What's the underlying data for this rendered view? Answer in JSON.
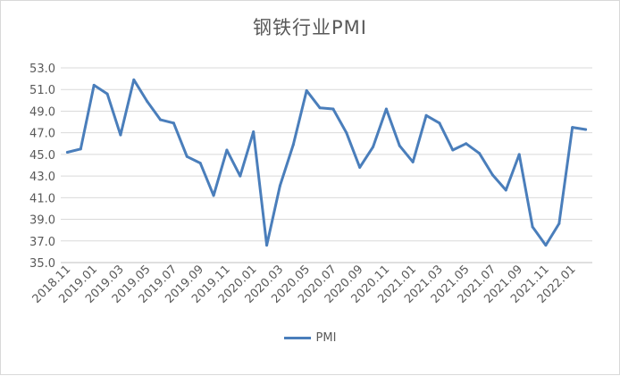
{
  "chart_data": {
    "type": "line",
    "title": "钢铁行业PMI",
    "xlabel": "",
    "ylabel": "",
    "ylim": [
      35.0,
      53.0
    ],
    "yticks": [
      "35.0",
      "37.0",
      "39.0",
      "41.0",
      "43.0",
      "45.0",
      "47.0",
      "49.0",
      "51.0",
      "53.0"
    ],
    "x": [
      "2018.11",
      "2018.12",
      "2019.01",
      "2019.02",
      "2019.03",
      "2019.04",
      "2019.05",
      "2019.06",
      "2019.07",
      "2019.08",
      "2019.09",
      "2019.10",
      "2019.11",
      "2019.12",
      "2020.01",
      "2020.02",
      "2020.03",
      "2020.04",
      "2020.05",
      "2020.06",
      "2020.07",
      "2020.08",
      "2020.09",
      "2020.10",
      "2020.11",
      "2020.12",
      "2021.01",
      "2021.02",
      "2021.03",
      "2021.04",
      "2021.05",
      "2021.06",
      "2021.07",
      "2021.08",
      "2021.09",
      "2021.10",
      "2021.11",
      "2021.12",
      "2022.01",
      "2022.02"
    ],
    "xtick_labels": [
      "2018.11",
      "2019.01",
      "2019.03",
      "2019.05",
      "2019.07",
      "2019.09",
      "2019.11",
      "2020.01",
      "2020.03",
      "2020.05",
      "2020.07",
      "2020.09",
      "2020.11",
      "2021.01",
      "2021.03",
      "2021.05",
      "2021.07",
      "2021.09",
      "2021.11",
      "2022.01"
    ],
    "series": [
      {
        "name": "PMI",
        "color": "#4a7ebb",
        "values": [
          45.2,
          45.5,
          51.4,
          50.6,
          46.8,
          51.9,
          49.9,
          48.2,
          47.9,
          44.8,
          44.2,
          41.2,
          45.4,
          43.0,
          47.1,
          36.6,
          42.1,
          45.9,
          50.9,
          49.3,
          49.2,
          47.0,
          43.8,
          45.7,
          49.2,
          45.8,
          44.3,
          48.6,
          47.9,
          45.4,
          46.0,
          45.1,
          43.1,
          41.7,
          45.0,
          38.3,
          36.6,
          38.6,
          47.5,
          47.3
        ]
      }
    ],
    "grid": true,
    "legend": "bottom"
  }
}
